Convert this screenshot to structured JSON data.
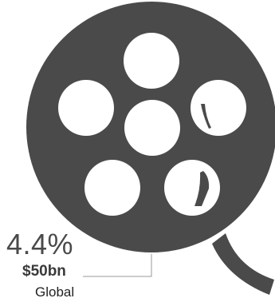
{
  "stat": {
    "percent": "4.4%",
    "amount": "$50bn",
    "region": "Global"
  },
  "colors": {
    "reel": "#4a4a4a",
    "hole": "#ffffff",
    "leader_line": "#9a9a9a",
    "text_dark": "#222222",
    "text_mid": "#4a4a4a"
  },
  "icons": {
    "reel": "film-reel-icon"
  }
}
